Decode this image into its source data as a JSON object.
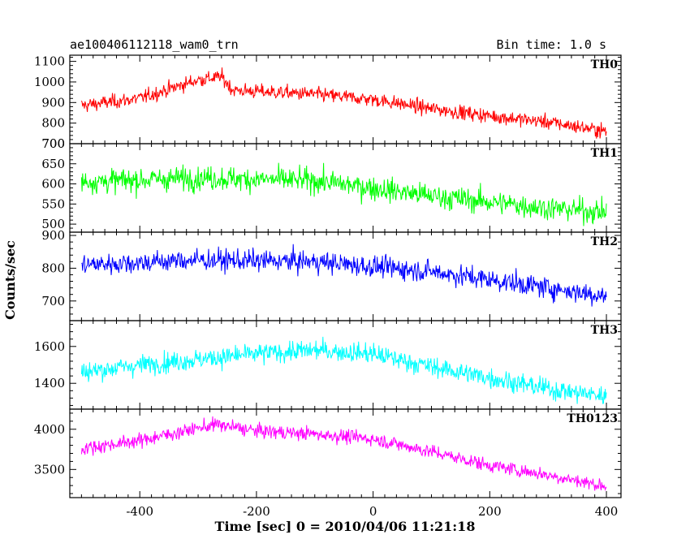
{
  "header": {
    "title": "ae100406112118_wam0_trn",
    "bin_time": "Bin time: 1.0 s"
  },
  "chart_data": {
    "type": "line",
    "xlabel": "Time [sec] 0 = 2010/04/06 11:21:18",
    "ylabel": "Counts/sec",
    "xlim": [
      -520,
      425
    ],
    "x_ticks": [
      -400,
      -200,
      0,
      200,
      400
    ],
    "x_range": [
      -500,
      400
    ],
    "x_step": 1,
    "panels": [
      {
        "name": "TH0",
        "color": "#ff0000",
        "ylim": [
          700,
          1130
        ],
        "yticks": [
          700,
          800,
          900,
          1000,
          1100
        ],
        "trend": [
          [
            -500,
            885
          ],
          [
            -400,
            920
          ],
          [
            -300,
            1010
          ],
          [
            -260,
            1025
          ],
          [
            -240,
            960
          ],
          [
            -100,
            940
          ],
          [
            0,
            915
          ],
          [
            100,
            870
          ],
          [
            200,
            835
          ],
          [
            300,
            805
          ],
          [
            400,
            760
          ]
        ],
        "noise": 45
      },
      {
        "name": "TH1",
        "color": "#00ff00",
        "ylim": [
          480,
          700
        ],
        "yticks": [
          500,
          550,
          600,
          650,
          700
        ],
        "trend": [
          [
            -500,
            605
          ],
          [
            -300,
            615
          ],
          [
            -100,
            608
          ],
          [
            0,
            590
          ],
          [
            100,
            570
          ],
          [
            200,
            555
          ],
          [
            300,
            540
          ],
          [
            400,
            530
          ]
        ],
        "noise": 38
      },
      {
        "name": "TH2",
        "color": "#0000ff",
        "ylim": [
          640,
          910
        ],
        "yticks": [
          700,
          800,
          900
        ],
        "trend": [
          [
            -500,
            810
          ],
          [
            -300,
            825
          ],
          [
            -100,
            820
          ],
          [
            0,
            805
          ],
          [
            100,
            790
          ],
          [
            200,
            765
          ],
          [
            300,
            740
          ],
          [
            400,
            715
          ]
        ],
        "noise": 42
      },
      {
        "name": "TH3",
        "color": "#00ffff",
        "ylim": [
          1260,
          1740
        ],
        "yticks": [
          1400,
          1600
        ],
        "trend": [
          [
            -500,
            1460
          ],
          [
            -400,
            1500
          ],
          [
            -200,
            1560
          ],
          [
            -100,
            1580
          ],
          [
            0,
            1560
          ],
          [
            100,
            1490
          ],
          [
            200,
            1430
          ],
          [
            300,
            1370
          ],
          [
            400,
            1330
          ]
        ],
        "noise": 70
      },
      {
        "name": "TH0123",
        "color": "#ff00ff",
        "ylim": [
          3150,
          4250
        ],
        "yticks": [
          3500,
          4000
        ],
        "trend": [
          [
            -500,
            3760
          ],
          [
            -400,
            3860
          ],
          [
            -270,
            4060
          ],
          [
            -200,
            3980
          ],
          [
            -100,
            3940
          ],
          [
            0,
            3880
          ],
          [
            100,
            3720
          ],
          [
            200,
            3550
          ],
          [
            300,
            3430
          ],
          [
            400,
            3290
          ]
        ],
        "noise": 110
      }
    ]
  }
}
